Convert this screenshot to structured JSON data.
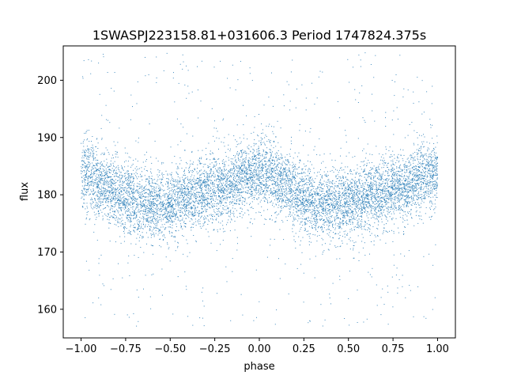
{
  "chart_data": {
    "type": "scatter",
    "title": "1SWASPJ223158.81+031606.3 Period 1747824.375s",
    "xlabel": "phase",
    "ylabel": "flux",
    "xlim": [
      -1.1,
      1.1
    ],
    "ylim": [
      155,
      206
    ],
    "x_ticks": [
      -1.0,
      -0.75,
      -0.5,
      -0.25,
      0.0,
      0.25,
      0.5,
      0.75,
      1.0
    ],
    "x_tick_labels": [
      "−1.00",
      "−0.75",
      "−0.50",
      "−0.25",
      "0.00",
      "0.25",
      "0.50",
      "0.75",
      "1.00"
    ],
    "y_ticks": [
      160,
      170,
      180,
      190,
      200
    ],
    "y_tick_labels": [
      "160",
      "170",
      "180",
      "190",
      "200"
    ],
    "grid": false,
    "legend": "none",
    "point_color": "#1f77b4",
    "series": [
      {
        "x": [
          -1.0,
          -0.95,
          -0.9,
          -0.85,
          -0.8,
          -0.75,
          -0.7,
          -0.65,
          -0.6,
          -0.55,
          -0.5,
          -0.45,
          -0.4,
          -0.35,
          -0.3,
          -0.25,
          -0.2,
          -0.15,
          -0.1,
          -0.05,
          0.0,
          0.05,
          0.1,
          0.15,
          0.2,
          0.25,
          0.3,
          0.35,
          0.4,
          0.45,
          0.5,
          0.55,
          0.6,
          0.65,
          0.7,
          0.75,
          0.8,
          0.85,
          0.9,
          0.95,
          1.0
        ],
        "y": [
          183.5,
          183.5,
          182.5,
          181.5,
          180.5,
          179.5,
          179.0,
          178.5,
          178.5,
          178.5,
          178.5,
          179.0,
          179.5,
          180.0,
          180.5,
          181.0,
          181.5,
          182.0,
          183.0,
          183.5,
          183.5,
          183.5,
          182.5,
          181.5,
          180.5,
          179.5,
          179.0,
          178.5,
          178.5,
          178.5,
          178.5,
          179.0,
          179.5,
          180.0,
          180.5,
          181.0,
          181.5,
          182.0,
          183.0,
          183.5,
          183.5
        ],
        "spread": [
          3.0,
          3.2,
          3.0,
          3.0,
          3.0,
          3.0,
          3.0,
          3.0,
          3.0,
          3.0,
          3.0,
          3.0,
          3.0,
          3.0,
          3.0,
          3.0,
          3.0,
          3.0,
          3.0,
          3.0,
          3.0,
          3.2,
          3.0,
          3.0,
          3.0,
          3.0,
          3.0,
          3.0,
          3.0,
          3.0,
          3.0,
          3.0,
          3.0,
          3.0,
          3.0,
          3.0,
          3.0,
          3.0,
          3.0,
          3.0,
          3.0
        ]
      }
    ],
    "outlier_range": [
      157,
      205
    ]
  }
}
